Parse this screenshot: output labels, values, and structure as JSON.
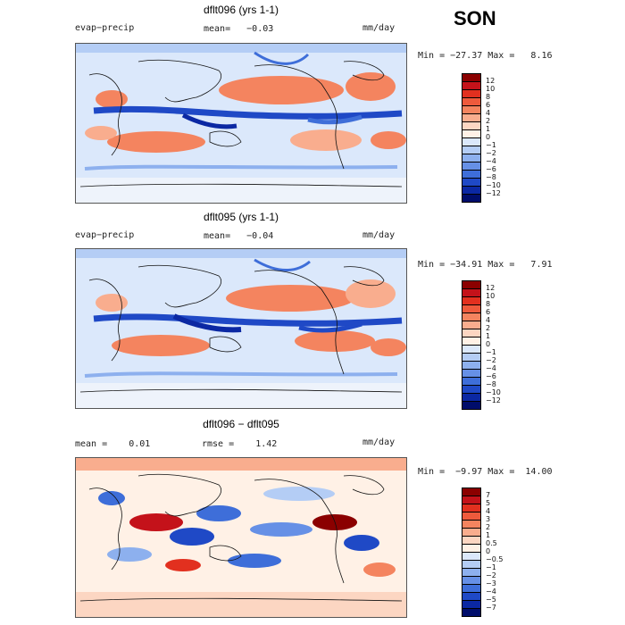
{
  "season": "SON",
  "panels": [
    {
      "title": "dflt096 (yrs 1-1)",
      "left_label": "evap−precip",
      "center_label": "mean=   −0.03",
      "unit": "mm/day",
      "minmax": "Min = −27.37 Max =   8.16",
      "colorbar": {
        "labels": [
          "12",
          "10",
          "8",
          "6",
          "4",
          "2",
          "1",
          "0",
          "−1",
          "−2",
          "−4",
          "−6",
          "−8",
          "−10",
          "−12"
        ],
        "colors": [
          "#8b0000",
          "#c4121a",
          "#e2301f",
          "#ee5a3c",
          "#f4845f",
          "#f9ad8e",
          "#fcd6c2",
          "#fff1e6",
          "#dbe8fb",
          "#b4cdf5",
          "#8db0ee",
          "#6690e6",
          "#3e6ed9",
          "#1f49c6",
          "#0b28a3",
          "#000d6b"
        ]
      }
    },
    {
      "title": "dflt095 (yrs 1-1)",
      "left_label": "evap−precip",
      "center_label": "mean=   −0.04",
      "unit": "mm/day",
      "minmax": "Min = −34.91 Max =   7.91",
      "colorbar": {
        "labels": [
          "12",
          "10",
          "8",
          "6",
          "4",
          "2",
          "1",
          "0",
          "−1",
          "−2",
          "−4",
          "−6",
          "−8",
          "−10",
          "−12"
        ],
        "colors": [
          "#8b0000",
          "#c4121a",
          "#e2301f",
          "#ee5a3c",
          "#f4845f",
          "#f9ad8e",
          "#fcd6c2",
          "#fff1e6",
          "#dbe8fb",
          "#b4cdf5",
          "#8db0ee",
          "#6690e6",
          "#3e6ed9",
          "#1f49c6",
          "#0b28a3",
          "#000d6b"
        ]
      }
    },
    {
      "title": "dflt096 − dflt095",
      "left_label": "mean =    0.01",
      "center_label": "rmse =    1.42",
      "unit": "mm/day",
      "minmax": "Min =  −9.97 Max =  14.00",
      "colorbar": {
        "labels": [
          "7",
          "5",
          "4",
          "3",
          "2",
          "1",
          "0.5",
          "0",
          "−0.5",
          "−1",
          "−2",
          "−3",
          "−4",
          "−5",
          "−7"
        ],
        "colors": [
          "#8b0000",
          "#c4121a",
          "#e2301f",
          "#ee5a3c",
          "#f4845f",
          "#f9ad8e",
          "#fcd6c2",
          "#fff1e6",
          "#dbe8fb",
          "#b4cdf5",
          "#8db0ee",
          "#6690e6",
          "#3e6ed9",
          "#1f49c6",
          "#0b28a3",
          "#000d6b"
        ]
      }
    }
  ]
}
